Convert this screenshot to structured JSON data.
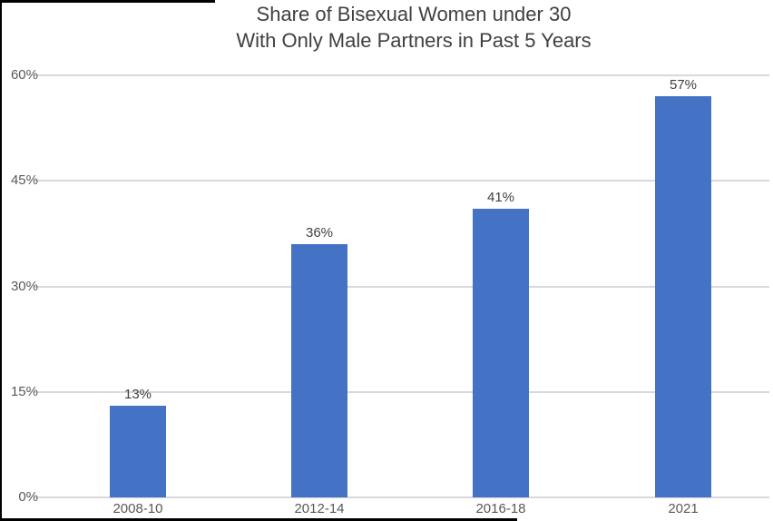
{
  "title": {
    "line1": "Share of Bisexual Women under 30",
    "line2": "With Only Male Partners in Past 5 Years"
  },
  "chart_data": {
    "type": "bar",
    "title": "Share of Bisexual Women under 30 With Only Male Partners in Past 5 Years",
    "categories": [
      "2008-10",
      "2012-14",
      "2016-18",
      "2021"
    ],
    "values": [
      13,
      36,
      41,
      57
    ],
    "data_labels": [
      "13%",
      "36%",
      "41%",
      "57%"
    ],
    "xlabel": "",
    "ylabel": "",
    "ylim": [
      0,
      60
    ],
    "ytick_values": [
      0,
      15,
      30,
      45,
      60
    ],
    "ytick_labels": [
      "0%",
      "15%",
      "30%",
      "45%",
      "60%"
    ],
    "grid": true,
    "legend": false,
    "colors": {
      "bar": "#4472C4",
      "gridline": "#D9D9D9",
      "title_text": "#404040",
      "axis_tick_text": "#595959",
      "data_label_text": "#404040",
      "frame_border": "#000000",
      "background": "#FFFFFF"
    }
  }
}
